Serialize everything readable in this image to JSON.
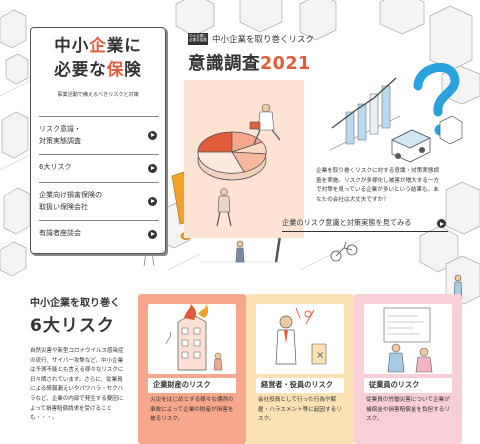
{
  "menu": {
    "title_line1": [
      "中小",
      "企",
      "業に"
    ],
    "title_line2": [
      "必要な",
      "保",
      "険"
    ],
    "subtitle": "事業活動で備えるべきリスクと対策",
    "items": [
      {
        "label_line1": "リスク意識・",
        "label_line2": "対策実態調査"
      },
      {
        "label_line1": "6大リスク",
        "label_line2": ""
      },
      {
        "label_line1": "企業向け損害保険の",
        "label_line2": "取扱い保険会社"
      },
      {
        "label_line1": "有識者座談会",
        "label_line2": ""
      }
    ]
  },
  "survey": {
    "badge_line1": "中小企業に",
    "badge_line2": "必要な保険",
    "subtitle": "中小企業を取り巻くリスク",
    "title": "意識調査",
    "year": "2021",
    "description": "企業を取り巻くリスクに対する意識・対策実態調査を実施。リスクが多様化し被害が増大する一方で対策を見っている企業が多いという結果も。あなたの会社は大丈夫ですか？",
    "link_label": "企業のリスク意識と対策実態を見てみる"
  },
  "six_risks": {
    "title_line1": "中小企業を取り巻く",
    "title_line2": "6大リスク",
    "body": "自然災害や新型コロナウイルス感染症の流行、サイバー攻撃など、中小企業は予測不能とも言える様々なリスクに日々晒されています。さらに、従業員による情報漏えいやパワハラ・セクハラなど、企業の内部で発生する要因によって損害賠償請求を受けることも・・・。",
    "cards": [
      {
        "label": "企業財産のリスク",
        "description": "火災をはじめとする様々な偶然の事故によって企業の財産が損害を被るリスク。"
      },
      {
        "label": "経営者・役員のリスク",
        "description": "会社役員として行った行為や解雇・ハラスメント等に起因するリスク。"
      },
      {
        "label": "従業員のリスク",
        "description": "従業員の労働災害について企業が補償金や損害賠償金を負担するリスク。"
      }
    ]
  },
  "colors": {
    "accent": "#e15d3a",
    "card1_bg": "#f7a88c",
    "card2_bg": "#fbe2b4",
    "card3_bg": "#f8cfd6",
    "survey_bg": "#fde3d4",
    "question_mark": "#2aa3dc",
    "exclamation": "#f2a22b"
  },
  "icons": [
    "arrow-right-icon",
    "question-mark-icon",
    "exclamation-icon",
    "magnifier-icon",
    "pie-chart-icon",
    "bar-chart-icon",
    "truck-icon",
    "bicycle-icon",
    "burning-building-icon"
  ]
}
